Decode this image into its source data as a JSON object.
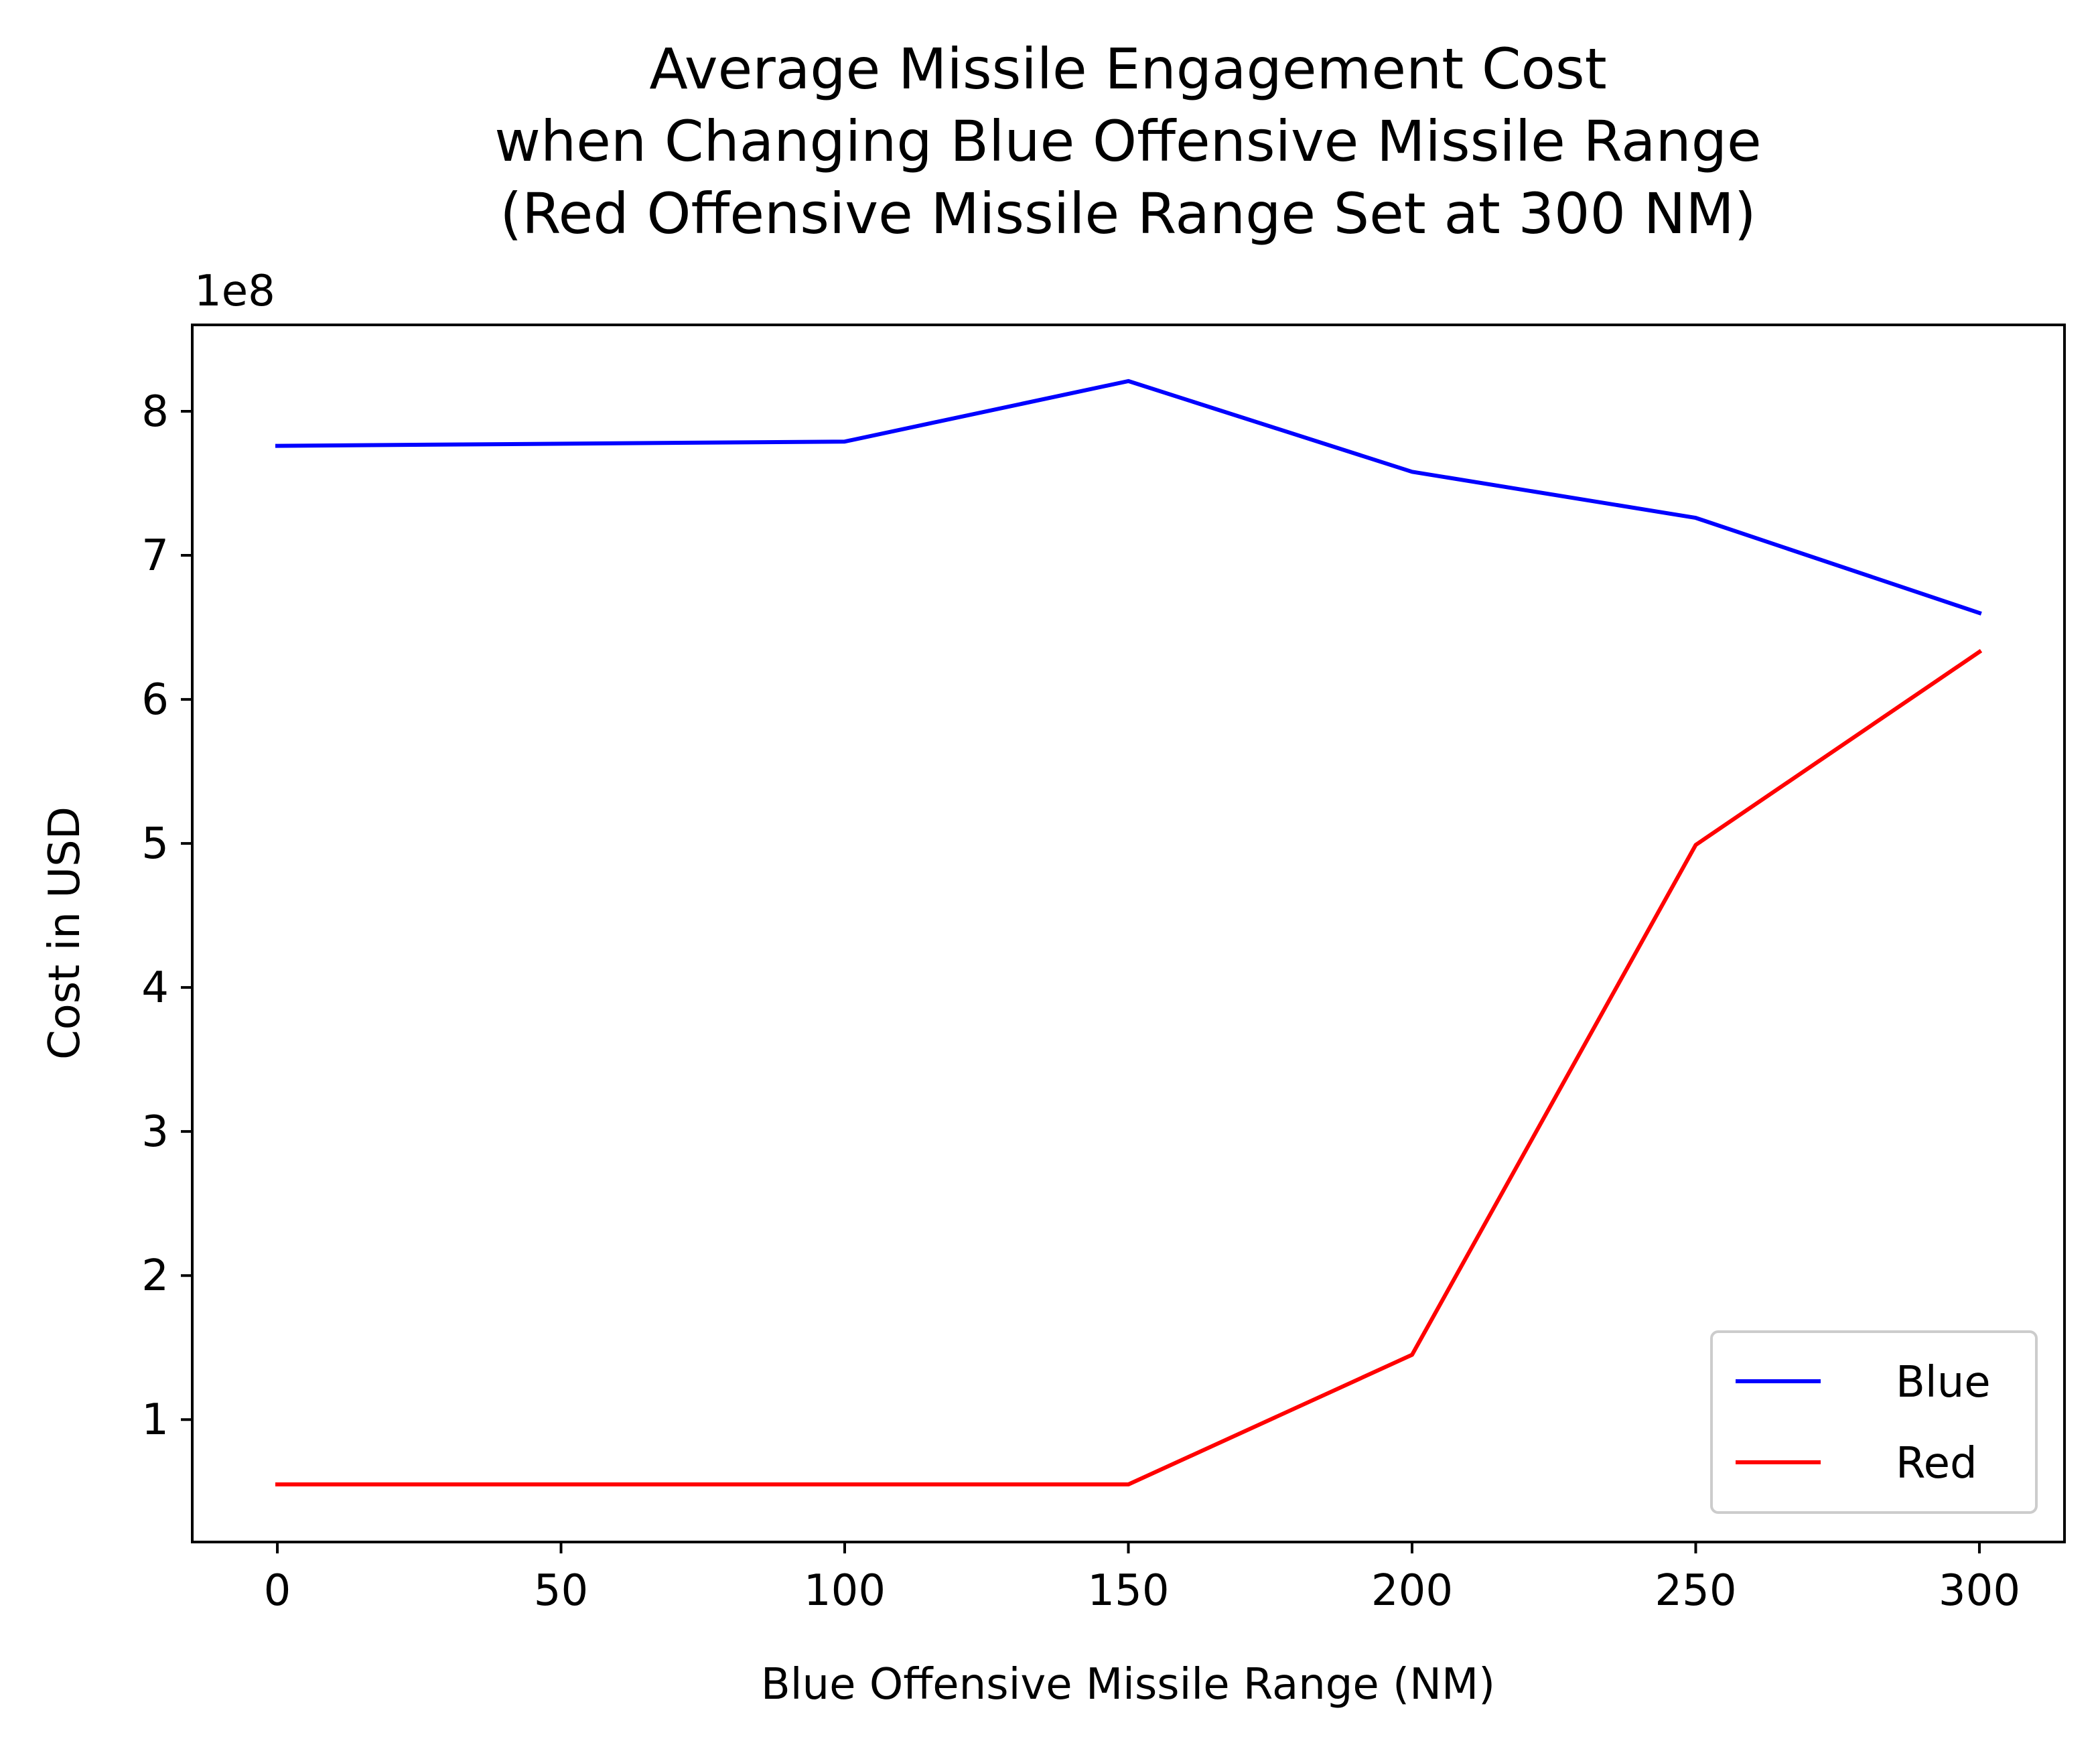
{
  "chart_data": {
    "type": "line",
    "title": [
      "Average Missile Engagement Cost",
      "when Changing Blue Offensive Missile Range",
      "(Red Offensive Missile Range Set at 300 NM)"
    ],
    "xlabel": "Blue Offensive Missile Range (NM)",
    "ylabel": "Cost in USD",
    "y_offset_label": "1e8",
    "x": [
      0,
      100,
      150,
      200,
      250,
      300
    ],
    "series": [
      {
        "name": "Blue",
        "color": "#0000ff",
        "values": [
          7.76,
          7.79,
          8.21,
          7.58,
          7.26,
          6.6
        ]
      },
      {
        "name": "Red",
        "color": "#ff0000",
        "values": [
          0.55,
          0.55,
          0.55,
          1.45,
          4.99,
          6.33
        ]
      }
    ],
    "xlim": [
      -15,
      315
    ],
    "ylim": [
      0.15,
      8.6
    ],
    "xticks": [
      0,
      50,
      100,
      150,
      200,
      250,
      300
    ],
    "yticks": [
      1,
      2,
      3,
      4,
      5,
      6,
      7,
      8
    ],
    "grid": false,
    "legend_position": "lower right"
  }
}
